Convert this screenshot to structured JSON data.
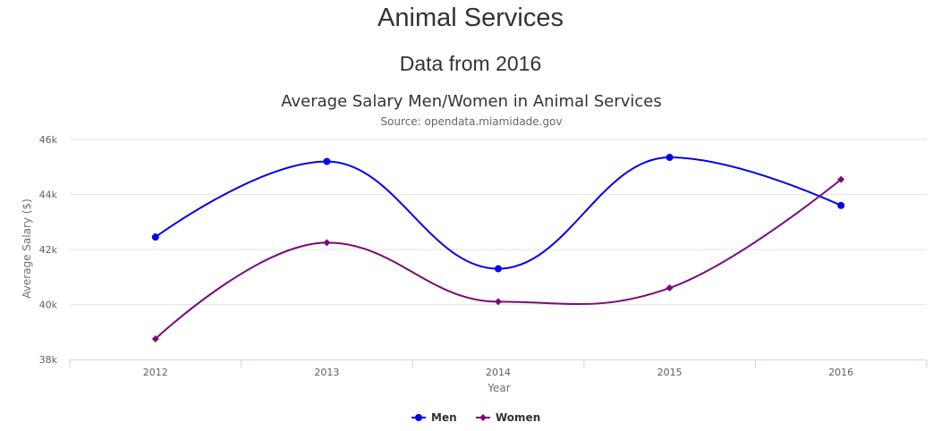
{
  "page": {
    "title": "Animal Services",
    "subtitle": "Data from 2016"
  },
  "chart_data": {
    "type": "line",
    "title": "Average Salary Men/Women in Animal Services",
    "subtitle": "Source: opendata.miamidade.gov",
    "xlabel": "Year",
    "ylabel": "Average Salary ($)",
    "categories": [
      "2012",
      "2013",
      "2014",
      "2015",
      "2016"
    ],
    "ylim": [
      38000,
      46000
    ],
    "yticks": [
      {
        "value": 38000,
        "label": "38k"
      },
      {
        "value": 40000,
        "label": "40k"
      },
      {
        "value": 42000,
        "label": "42k"
      },
      {
        "value": 44000,
        "label": "44k"
      },
      {
        "value": 46000,
        "label": "46k"
      }
    ],
    "grid": true,
    "smooth": true,
    "legend_position": "bottom-center",
    "series": [
      {
        "name": "Men",
        "color": "#0000ee",
        "marker": "circle",
        "values": [
          42450,
          45200,
          41300,
          45350,
          43600
        ]
      },
      {
        "name": "Women",
        "color": "#7a0a7a",
        "marker": "diamond",
        "values": [
          38750,
          42250,
          40100,
          40600,
          44550
        ]
      }
    ]
  }
}
